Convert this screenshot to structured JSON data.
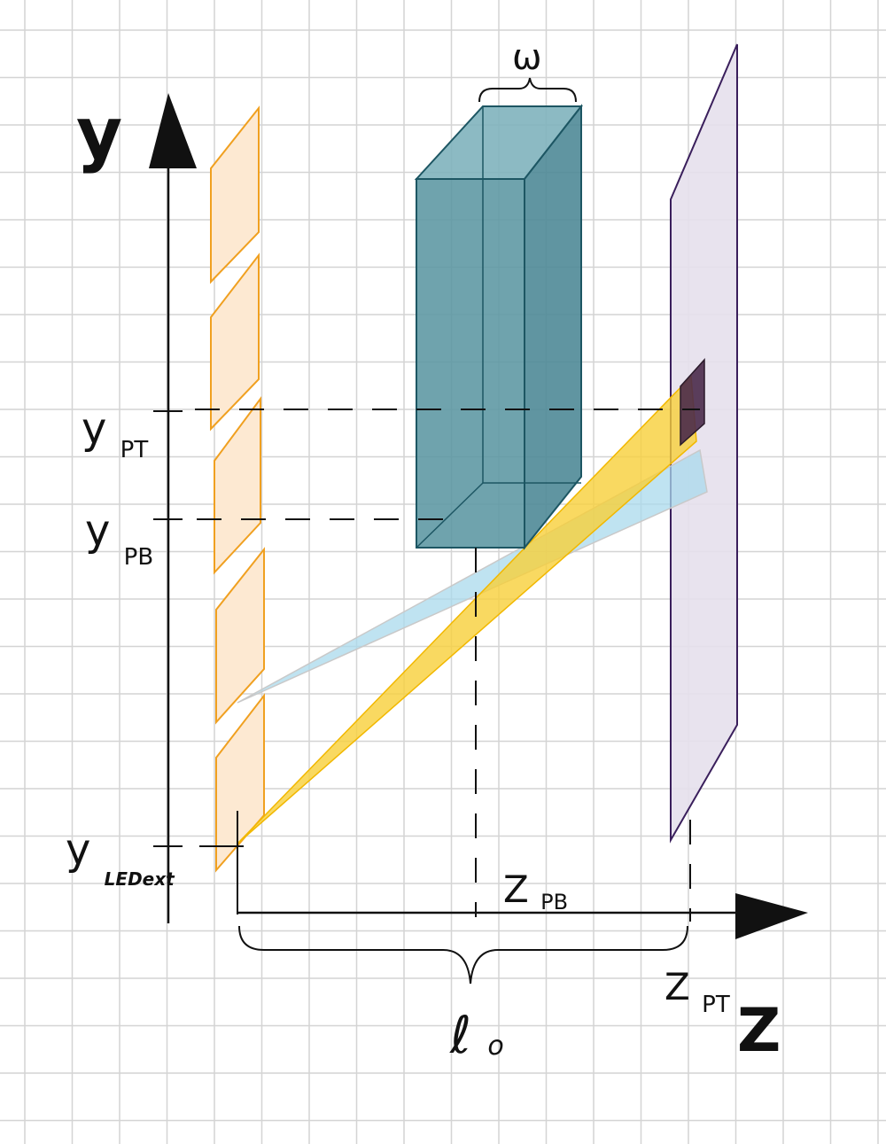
{
  "diagram": {
    "axis_y_label": "y",
    "axis_z_label": "Z",
    "omega_label": "ω",
    "l0_label": {
      "main": "ℓ",
      "sub": "o"
    },
    "y_pt": {
      "main": "y",
      "sub": "PT"
    },
    "y_pb": {
      "main": "y",
      "sub": "PB"
    },
    "y_led": {
      "main": "y",
      "sub": "LEDext"
    },
    "z_pb": {
      "main": "Z",
      "sub": "PB"
    },
    "z_pt": {
      "main": "Z",
      "sub": "PT"
    }
  },
  "colors": {
    "grid": "#d4d4d4",
    "axis": "#111111",
    "led_stroke": "#f0a020",
    "led_fill": "#fde9d2",
    "block_fill": "#5b96a2",
    "block_stroke": "#1d5663",
    "screen_fill": "#e5e0ec",
    "screen_stroke": "#3a1f5c",
    "yellow_beam": "#f7cf3a",
    "blue_beam": "#a9d9ec",
    "detector": "#4a2a4a"
  }
}
